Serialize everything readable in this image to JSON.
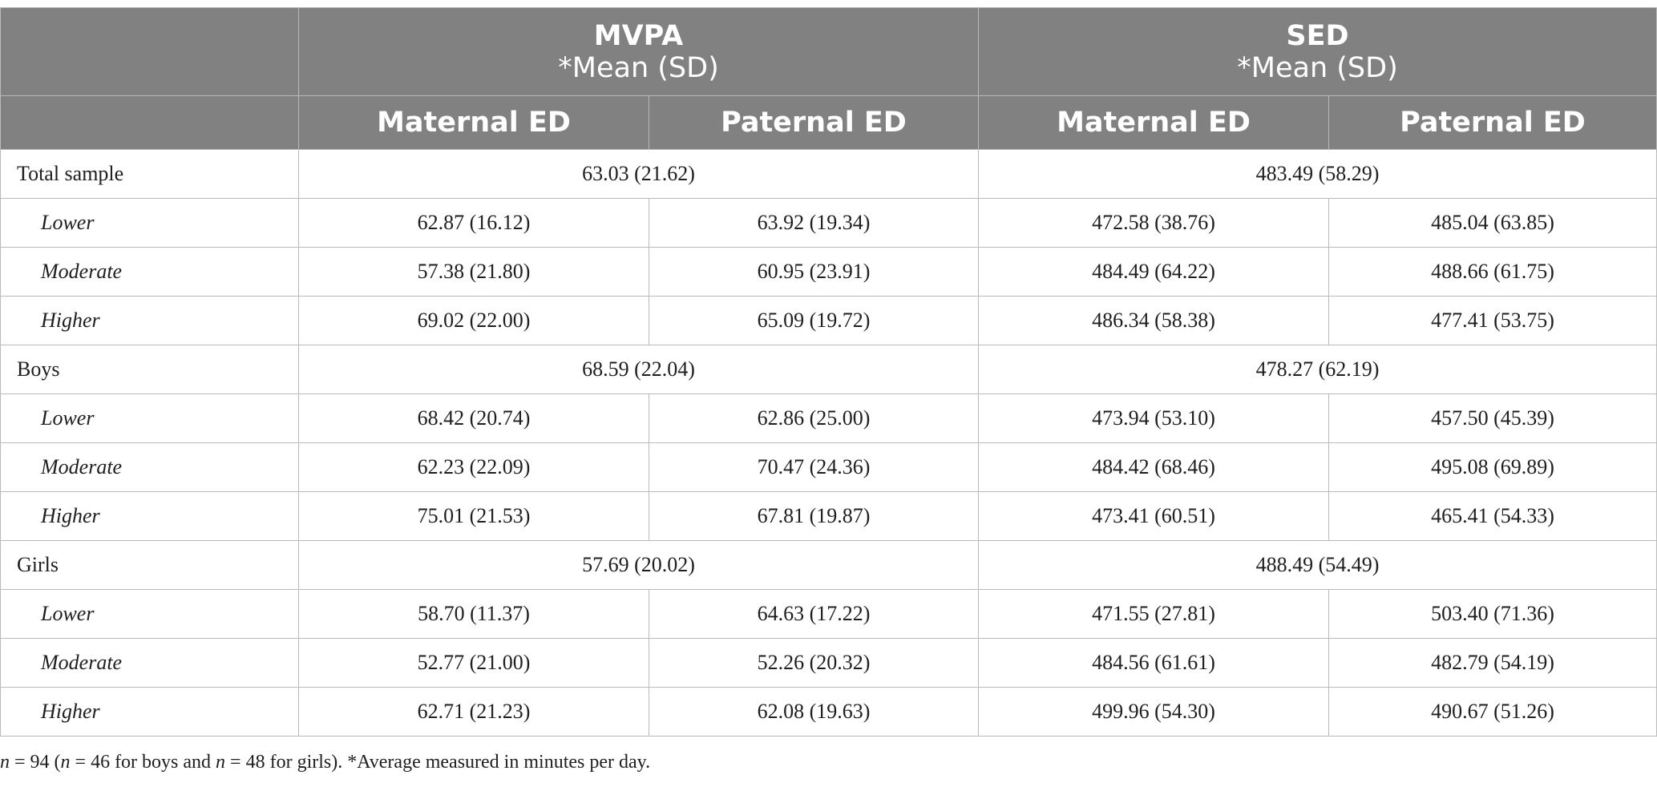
{
  "header": {
    "mvpa_title": "MVPA",
    "mvpa_sub": "*Mean (SD)",
    "sed_title": "SED",
    "sed_sub": "*Mean (SD)",
    "col_maternal_1": "Maternal ED",
    "col_paternal_1": "Paternal ED",
    "col_maternal_2": "Maternal ED",
    "col_paternal_2": "Paternal ED"
  },
  "groups": [
    {
      "label": "Total sample",
      "mvpa_total": "63.03 (21.62)",
      "sed_total": "483.49 (58.29)",
      "rows": [
        {
          "label": "Lower",
          "values": [
            "62.87 (16.12)",
            "63.92 (19.34)",
            "472.58 (38.76)",
            "485.04 (63.85)"
          ]
        },
        {
          "label": "Moderate",
          "values": [
            "57.38 (21.80)",
            "60.95 (23.91)",
            "484.49 (64.22)",
            "488.66 (61.75)"
          ]
        },
        {
          "label": "Higher",
          "values": [
            "69.02 (22.00)",
            "65.09 (19.72)",
            "486.34 (58.38)",
            "477.41 (53.75)"
          ]
        }
      ]
    },
    {
      "label": "Boys",
      "mvpa_total": "68.59 (22.04)",
      "sed_total": "478.27 (62.19)",
      "rows": [
        {
          "label": "Lower",
          "values": [
            "68.42 (20.74)",
            "62.86 (25.00)",
            "473.94 (53.10)",
            "457.50 (45.39)"
          ]
        },
        {
          "label": "Moderate",
          "values": [
            "62.23 (22.09)",
            "70.47 (24.36)",
            "484.42 (68.46)",
            "495.08 (69.89)"
          ]
        },
        {
          "label": "Higher",
          "values": [
            "75.01 (21.53)",
            "67.81 (19.87)",
            "473.41 (60.51)",
            "465.41 (54.33)"
          ]
        }
      ]
    },
    {
      "label": "Girls",
      "mvpa_total": "57.69 (20.02)",
      "sed_total": "488.49 (54.49)",
      "rows": [
        {
          "label": "Lower",
          "values": [
            "58.70 (11.37)",
            "64.63 (17.22)",
            "471.55 (27.81)",
            "503.40 (71.36)"
          ]
        },
        {
          "label": "Moderate",
          "values": [
            "52.77 (21.00)",
            "52.26 (20.32)",
            "484.56 (61.61)",
            "482.79 (54.19)"
          ]
        },
        {
          "label": "Higher",
          "values": [
            "62.71 (21.23)",
            "62.08 (19.63)",
            "499.96 (54.30)",
            "490.67 (51.26)"
          ]
        }
      ]
    }
  ],
  "footnote": {
    "n": "n",
    "eq94": " = 94 (",
    "n_boys": "n",
    "eq46": " = 46 for boys and ",
    "n_girls": "n",
    "eq48": " = 48 for girls). *Average measured in minutes per day."
  }
}
